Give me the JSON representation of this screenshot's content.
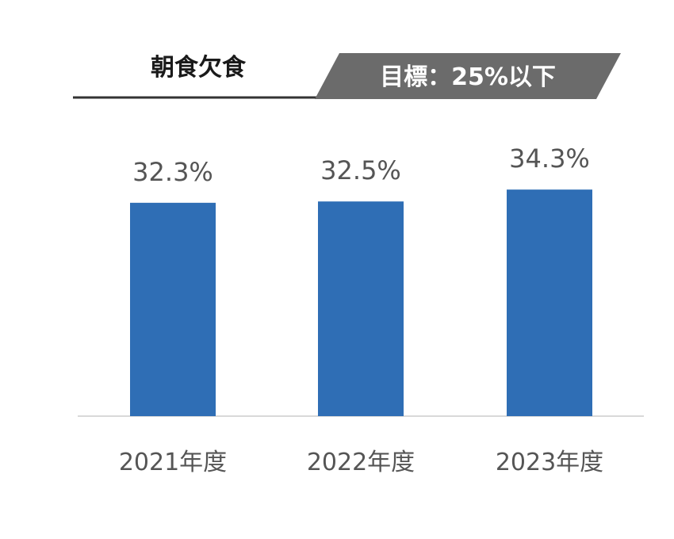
{
  "header": {
    "title": "朝食欠食",
    "target": "目標：25%以下"
  },
  "colors": {
    "bar": "#2f6eb5",
    "target_banner": "#6b6b6b",
    "header_rule": "#333333",
    "axis": "#d9d9d9",
    "text": "#555555"
  },
  "chart_data": {
    "type": "bar",
    "title": "朝食欠食",
    "annotation": "目標：25%以下",
    "categories": [
      "2021年度",
      "2022年度",
      "2023年度"
    ],
    "values": [
      32.3,
      32.5,
      34.3
    ],
    "value_labels": [
      "32.3%",
      "32.5%",
      "34.3%"
    ],
    "ylim": [
      0,
      45
    ],
    "grid": false,
    "legend": "none"
  }
}
